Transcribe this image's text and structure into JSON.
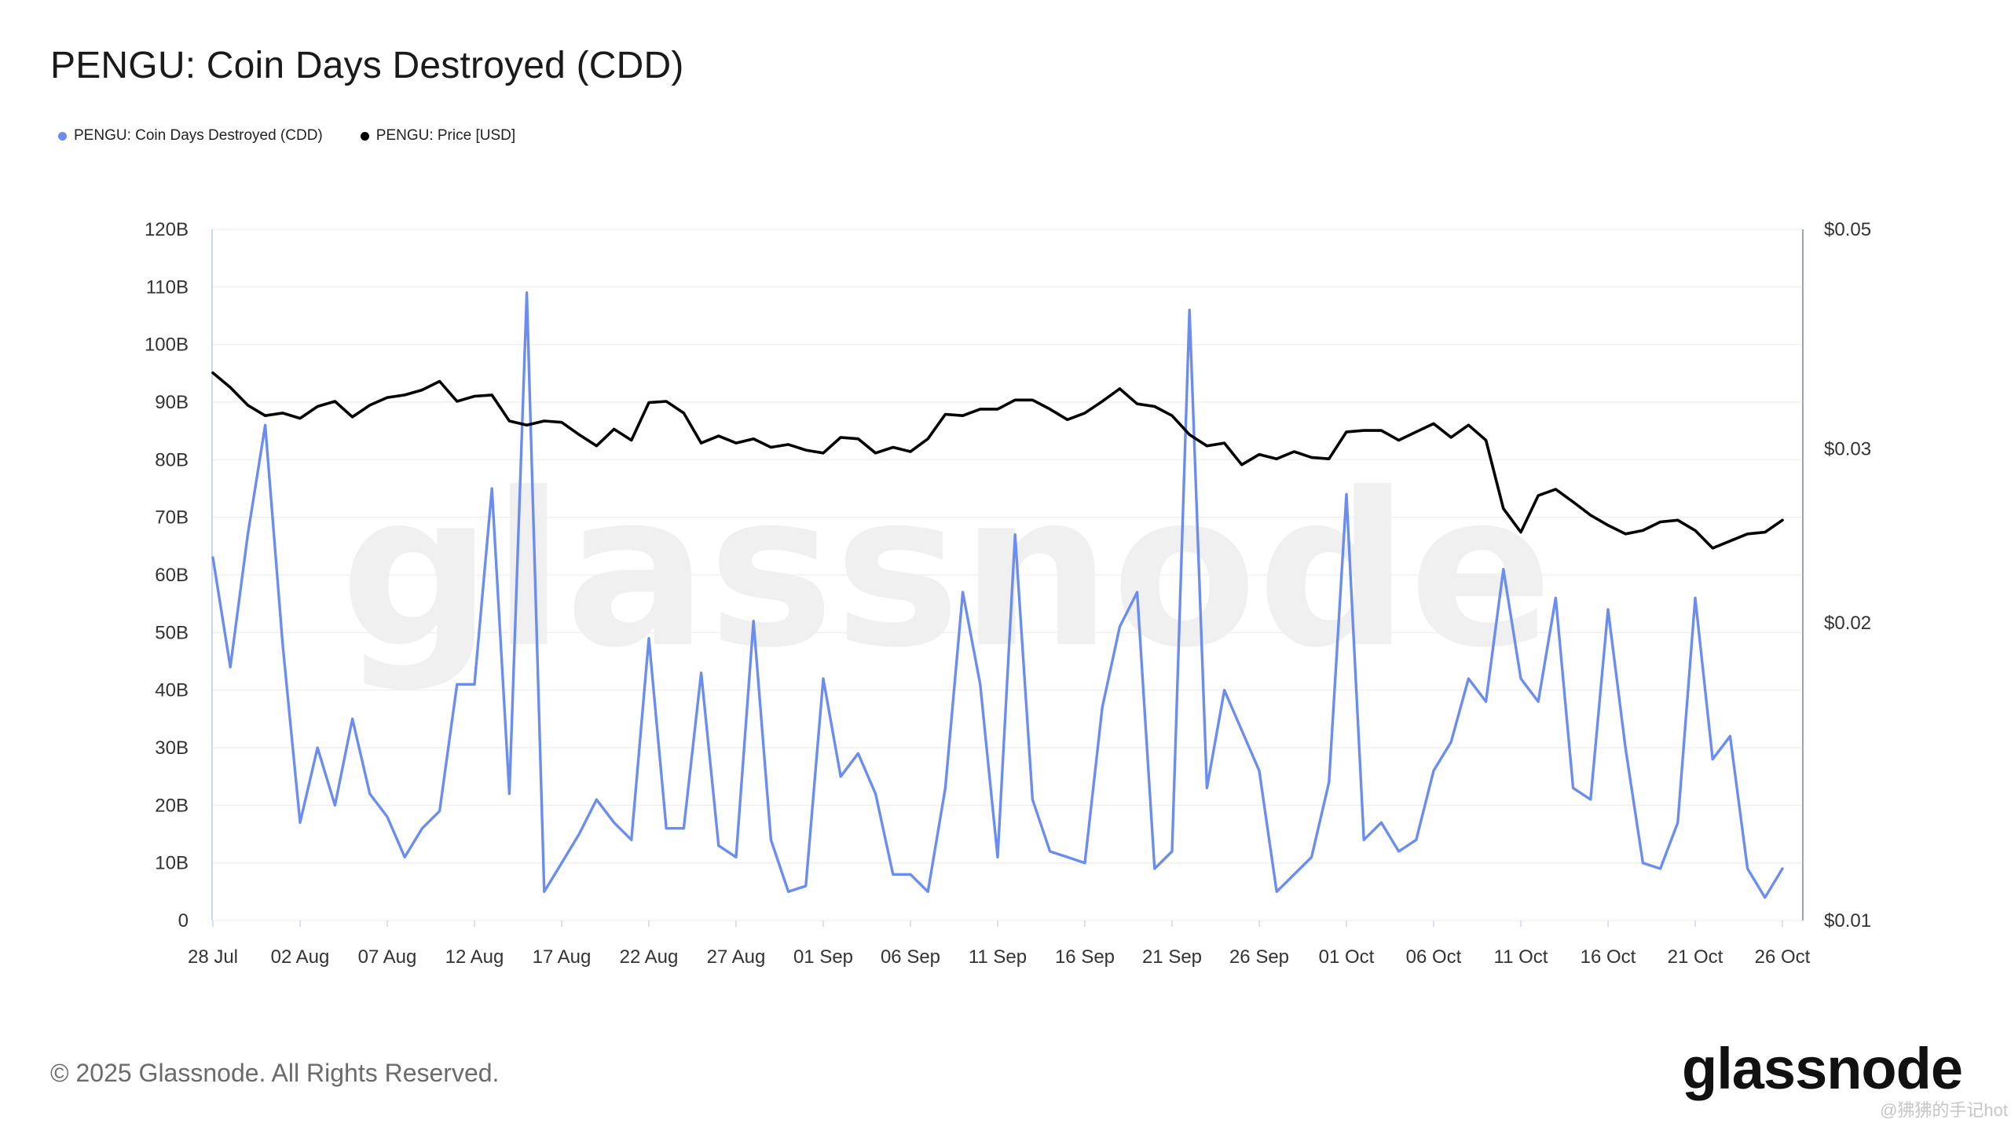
{
  "header": {
    "title": "PENGU: Coin Days Destroyed (CDD)"
  },
  "legend": {
    "items": [
      {
        "label": "PENGU: Coin Days Destroyed (CDD)",
        "color": "#6b8df0"
      },
      {
        "label": "PENGU: Price [USD]",
        "color": "#000000"
      }
    ]
  },
  "footer": {
    "copyright": "© 2025 Glassnode. All Rights Reserved.",
    "logo_text": "glassnode",
    "watermark_note": "@狒狒的手记hot"
  },
  "background_watermark": "glassnode",
  "chart_data": {
    "type": "line",
    "x_tick_labels": [
      "28 Jul",
      "02 Aug",
      "07 Aug",
      "12 Aug",
      "17 Aug",
      "22 Aug",
      "27 Aug",
      "01 Sep",
      "06 Sep",
      "11 Sep",
      "16 Sep",
      "21 Sep",
      "26 Sep",
      "01 Oct",
      "06 Oct",
      "11 Oct",
      "16 Oct",
      "21 Oct",
      "26 Oct"
    ],
    "y_left_tick_labels": [
      "0",
      "10B",
      "20B",
      "30B",
      "40B",
      "50B",
      "60B",
      "70B",
      "80B",
      "90B",
      "100B",
      "110B",
      "120B"
    ],
    "y_left_range": [
      0,
      120
    ],
    "y_left_unit": "B",
    "y_right_tick_labels": [
      "$0.01",
      "$0.02",
      "$0.03",
      "$0.05"
    ],
    "y_right_tick_values": [
      0.01,
      0.02,
      0.03,
      0.05
    ],
    "y_right_scale": "log",
    "y_right_range": [
      0.01,
      0.05
    ],
    "grid": "horizontal",
    "legend_position": "top-left",
    "series": [
      {
        "name": "PENGU: Coin Days Destroyed (CDD)",
        "axis": "left",
        "color": "#6b8df0",
        "values": [
          63,
          44,
          67,
          86,
          48,
          17,
          30,
          20,
          35,
          22,
          18,
          11,
          16,
          19,
          41,
          41,
          75,
          22,
          109,
          5,
          10,
          15,
          21,
          17,
          14,
          49,
          16,
          16,
          43,
          13,
          11,
          52,
          14,
          5,
          6,
          42,
          25,
          29,
          22,
          8,
          8,
          5,
          23,
          57,
          41,
          11,
          67,
          21,
          12,
          11,
          10,
          37,
          51,
          57,
          9,
          12,
          106,
          23,
          40,
          33,
          26,
          5,
          8,
          11,
          24,
          74,
          14,
          17,
          12,
          14,
          26,
          31,
          42,
          38,
          61,
          42,
          38,
          56,
          23,
          21,
          54,
          30,
          10,
          9,
          17,
          56,
          28,
          32,
          9,
          4,
          9
        ]
      },
      {
        "name": "PENGU: Price [USD]",
        "axis": "right",
        "color": "#000000",
        "values": [
          0.0358,
          0.0346,
          0.0332,
          0.0324,
          0.0326,
          0.0322,
          0.0331,
          0.0335,
          0.0323,
          0.0332,
          0.0338,
          0.034,
          0.0344,
          0.0351,
          0.0335,
          0.0339,
          0.034,
          0.032,
          0.0317,
          0.032,
          0.0319,
          0.031,
          0.0302,
          0.0314,
          0.0306,
          0.0334,
          0.0335,
          0.0326,
          0.0304,
          0.0309,
          0.0304,
          0.0307,
          0.0301,
          0.0303,
          0.0299,
          0.0297,
          0.0308,
          0.0307,
          0.0297,
          0.0301,
          0.0298,
          0.0307,
          0.0325,
          0.0324,
          0.0329,
          0.0329,
          0.0336,
          0.0336,
          0.0329,
          0.0321,
          0.0326,
          0.0335,
          0.0345,
          0.0333,
          0.0331,
          0.0324,
          0.031,
          0.0302,
          0.0304,
          0.0289,
          0.0296,
          0.0293,
          0.0298,
          0.0294,
          0.0293,
          0.0312,
          0.0313,
          0.0313,
          0.0306,
          0.0312,
          0.0318,
          0.0308,
          0.0317,
          0.0306,
          0.0261,
          0.0247,
          0.0269,
          0.0273,
          0.0265,
          0.0257,
          0.0251,
          0.0246,
          0.0248,
          0.0253,
          0.0254,
          0.0248,
          0.0238,
          0.0242,
          0.0246,
          0.0247,
          0.0254
        ]
      }
    ]
  }
}
